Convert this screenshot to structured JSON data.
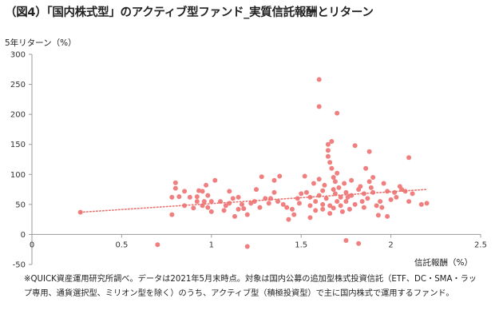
{
  "title": "（図4）「国内株式型」のアクティブ型ファンド_実質信託報酬とリターン",
  "note": "※QUICK資産運用研究所調べ。データは2021年5月末時点。対象は国内公募の追加型株式投資信託（ETF、DC・SMA・ラップ専用、通貨選択型、ミリオン型を除く）のうち、アクティブ型（積極投資型）で主に国内株式で運用するファンド。",
  "colors": {
    "points": "#f07f80",
    "trend": "#e8736f",
    "axis": "#9a9a9a"
  },
  "chart_data": {
    "type": "scatter",
    "title": "",
    "xlabel": "信託報酬（%）",
    "ylabel": "5年リターン（%）",
    "xlim": [
      0,
      2.5
    ],
    "ylim": [
      -50,
      300
    ],
    "xticks": [
      "0",
      "0.5",
      "1",
      "1.5",
      "2",
      "2.5"
    ],
    "yticks": [
      "-50",
      "0",
      "50",
      "100",
      "150",
      "200",
      "250",
      "300"
    ],
    "trendline": {
      "style": "dotted",
      "x": [
        0.27,
        2.2
      ],
      "y": [
        37,
        75
      ]
    },
    "points": [
      [
        0.27,
        37
      ],
      [
        0.7,
        -17
      ],
      [
        0.78,
        33
      ],
      [
        0.78,
        62
      ],
      [
        0.8,
        77
      ],
      [
        0.82,
        63
      ],
      [
        0.8,
        86
      ],
      [
        0.85,
        48
      ],
      [
        0.88,
        62
      ],
      [
        0.9,
        44
      ],
      [
        0.92,
        55
      ],
      [
        0.95,
        48
      ],
      [
        0.95,
        72
      ],
      [
        0.97,
        82
      ],
      [
        0.98,
        65
      ],
      [
        1.0,
        38
      ],
      [
        0.93,
        73
      ],
      [
        0.92,
        63
      ],
      [
        0.85,
        72
      ],
      [
        0.96,
        55
      ],
      [
        1.0,
        55
      ],
      [
        0.98,
        45
      ],
      [
        1.02,
        90
      ],
      [
        1.05,
        55
      ],
      [
        1.07,
        40
      ],
      [
        1.08,
        48
      ],
      [
        1.1,
        52
      ],
      [
        1.1,
        72
      ],
      [
        1.12,
        60
      ],
      [
        1.13,
        30
      ],
      [
        1.15,
        62
      ],
      [
        1.15,
        42
      ],
      [
        1.17,
        50
      ],
      [
        1.18,
        43
      ],
      [
        1.2,
        33
      ],
      [
        1.22,
        52
      ],
      [
        1.24,
        55
      ],
      [
        1.25,
        75
      ],
      [
        1.27,
        45
      ],
      [
        1.28,
        96
      ],
      [
        1.3,
        60
      ],
      [
        1.32,
        52
      ],
      [
        1.33,
        60
      ],
      [
        1.35,
        70
      ],
      [
        1.35,
        90
      ],
      [
        1.37,
        55
      ],
      [
        1.38,
        97
      ],
      [
        1.4,
        50
      ],
      [
        1.42,
        45
      ],
      [
        1.43,
        25
      ],
      [
        1.45,
        42
      ],
      [
        1.46,
        33
      ],
      [
        1.48,
        60
      ],
      [
        1.49,
        52
      ],
      [
        1.5,
        68
      ],
      [
        1.52,
        97
      ],
      [
        1.53,
        70
      ],
      [
        1.55,
        48
      ],
      [
        1.55,
        62
      ],
      [
        1.57,
        85
      ],
      [
        1.58,
        40
      ],
      [
        1.6,
        258
      ],
      [
        1.6,
        213
      ],
      [
        1.6,
        92
      ],
      [
        1.62,
        73
      ],
      [
        1.62,
        50
      ],
      [
        1.64,
        60
      ],
      [
        1.65,
        150
      ],
      [
        1.65,
        130
      ],
      [
        1.65,
        140
      ],
      [
        1.66,
        120
      ],
      [
        1.67,
        155
      ],
      [
        1.67,
        110
      ],
      [
        1.68,
        95
      ],
      [
        1.68,
        75
      ],
      [
        1.69,
        88
      ],
      [
        1.7,
        202
      ],
      [
        1.7,
        102
      ],
      [
        1.72,
        62
      ],
      [
        1.72,
        48
      ],
      [
        1.74,
        85
      ],
      [
        1.75,
        55
      ],
      [
        1.76,
        62
      ],
      [
        1.77,
        42
      ],
      [
        1.78,
        65
      ],
      [
        1.8,
        148
      ],
      [
        1.8,
        50
      ],
      [
        1.82,
        75
      ],
      [
        1.83,
        80
      ],
      [
        1.84,
        55
      ],
      [
        1.85,
        45
      ],
      [
        1.86,
        110
      ],
      [
        1.87,
        60
      ],
      [
        1.88,
        138
      ],
      [
        1.88,
        88
      ],
      [
        1.9,
        95
      ],
      [
        1.9,
        70
      ],
      [
        1.92,
        48
      ],
      [
        1.94,
        55
      ],
      [
        1.95,
        45
      ],
      [
        1.96,
        85
      ],
      [
        1.98,
        72
      ],
      [
        2.0,
        58
      ],
      [
        2.02,
        70
      ],
      [
        2.03,
        62
      ],
      [
        2.05,
        80
      ],
      [
        2.06,
        75
      ],
      [
        2.08,
        72
      ],
      [
        2.1,
        55
      ],
      [
        2.1,
        128
      ],
      [
        2.12,
        68
      ],
      [
        2.17,
        50
      ],
      [
        2.2,
        52
      ],
      [
        1.2,
        -20
      ],
      [
        1.75,
        -10
      ],
      [
        1.82,
        -15
      ],
      [
        1.98,
        30
      ],
      [
        1.93,
        32
      ],
      [
        1.55,
        28
      ],
      [
        1.62,
        42
      ],
      [
        1.66,
        35
      ],
      [
        1.7,
        55
      ],
      [
        1.73,
        38
      ],
      [
        1.6,
        65
      ],
      [
        1.63,
        82
      ],
      [
        1.69,
        68
      ],
      [
        1.71,
        78
      ],
      [
        1.75,
        70
      ],
      [
        1.78,
        90
      ],
      [
        1.58,
        55
      ],
      [
        1.85,
        68
      ],
      [
        1.89,
        78
      ],
      [
        1.66,
        48
      ],
      [
        1.68,
        44
      ]
    ]
  }
}
